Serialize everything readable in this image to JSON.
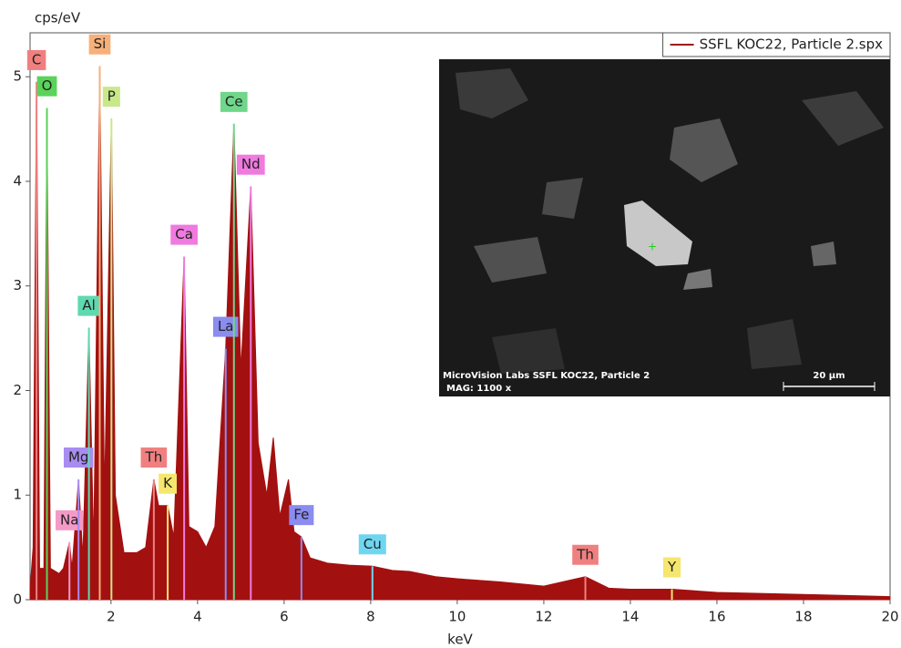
{
  "chart_data": {
    "type": "area",
    "y_label": "cps/eV",
    "x_label": "keV",
    "xlim": [
      0.13,
      20
    ],
    "ylim": [
      0,
      5.42
    ],
    "xticks": [
      2,
      4,
      6,
      8,
      10,
      12,
      14,
      16,
      18,
      20
    ],
    "yticks": [
      0,
      1,
      2,
      3,
      4,
      5
    ],
    "grid": false,
    "legend": "top-right",
    "x": [
      0.13,
      0.2,
      0.28,
      0.35,
      0.45,
      0.52,
      0.6,
      0.8,
      0.9,
      1.04,
      1.1,
      1.25,
      1.35,
      1.49,
      1.6,
      1.74,
      1.85,
      2.01,
      2.1,
      2.3,
      2.6,
      2.8,
      2.99,
      3.1,
      3.31,
      3.45,
      3.69,
      3.8,
      4.0,
      4.2,
      4.4,
      4.65,
      4.84,
      5.0,
      5.23,
      5.4,
      5.6,
      5.75,
      5.9,
      6.1,
      6.23,
      6.4,
      6.6,
      7.0,
      7.5,
      8.04,
      8.5,
      8.9,
      9.5,
      10,
      11,
      12,
      12.96,
      13.5,
      14,
      14.96,
      16,
      18,
      20
    ],
    "series": [
      {
        "name": "SSFL KOC22, Particle 2.spx",
        "color": "#a31010",
        "values": [
          0.1,
          0.5,
          4.95,
          0.3,
          0.3,
          4.7,
          0.3,
          0.25,
          0.3,
          0.55,
          0.3,
          1.15,
          0.4,
          2.6,
          0.5,
          5.1,
          1.0,
          4.6,
          1.0,
          0.45,
          0.45,
          0.5,
          1.15,
          0.9,
          0.9,
          0.6,
          3.28,
          0.7,
          0.65,
          0.5,
          0.7,
          2.4,
          4.55,
          2.2,
          3.95,
          1.5,
          1.0,
          1.55,
          0.8,
          1.15,
          0.65,
          0.6,
          0.4,
          0.35,
          0.33,
          0.32,
          0.28,
          0.27,
          0.22,
          0.2,
          0.17,
          0.13,
          0.22,
          0.11,
          0.1,
          0.1,
          0.07,
          0.05,
          0.03
        ]
      }
    ],
    "elements": [
      {
        "label": "C",
        "x": 0.28,
        "y": 4.95,
        "color": "#f08080"
      },
      {
        "label": "O",
        "x": 0.52,
        "y": 4.7,
        "color": "#5ad35a"
      },
      {
        "label": "Na",
        "x": 1.04,
        "y": 0.55,
        "color": "#f59ac8"
      },
      {
        "label": "Mg",
        "x": 1.25,
        "y": 1.15,
        "color": "#a98cf0"
      },
      {
        "label": "Al",
        "x": 1.49,
        "y": 2.6,
        "color": "#5fd9b0"
      },
      {
        "label": "Si",
        "x": 1.74,
        "y": 5.1,
        "color": "#f7b07a"
      },
      {
        "label": "P",
        "x": 2.01,
        "y": 4.6,
        "color": "#c8e88a"
      },
      {
        "label": "Th",
        "x": 2.99,
        "y": 1.15,
        "color": "#f08080"
      },
      {
        "label": "K",
        "x": 3.31,
        "y": 0.9,
        "color": "#f5e66e"
      },
      {
        "label": "Ca",
        "x": 3.69,
        "y": 3.28,
        "color": "#f07adf"
      },
      {
        "label": "La",
        "x": 4.65,
        "y": 2.4,
        "color": "#8a8cf0"
      },
      {
        "label": "Ce",
        "x": 4.84,
        "y": 4.55,
        "color": "#6fd68a"
      },
      {
        "label": "Nd",
        "x": 5.23,
        "y": 3.95,
        "color": "#f07adf"
      },
      {
        "label": "Fe",
        "x": 6.4,
        "y": 0.6,
        "color": "#8a8cf0"
      },
      {
        "label": "Cu",
        "x": 8.04,
        "y": 0.32,
        "color": "#6fd6f0"
      },
      {
        "label": "Th",
        "x": 12.96,
        "y": 0.22,
        "color": "#f08080"
      },
      {
        "label": "Y",
        "x": 14.96,
        "y": 0.1,
        "color": "#f5e66e"
      }
    ],
    "inset": {
      "caption": "MicroVision Labs  SSFL KOC22, Particle 2",
      "magnification": "MAG: 1100 x",
      "scale": "20 µm"
    }
  }
}
